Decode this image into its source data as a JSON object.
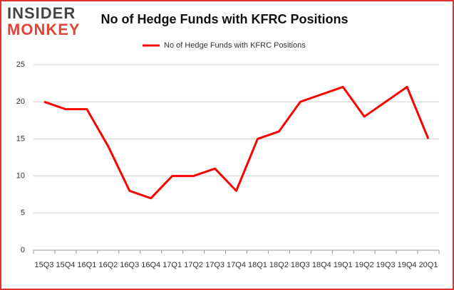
{
  "logo": {
    "line1": "INSIDER",
    "line2": "MONKEY"
  },
  "chart_data": {
    "type": "line",
    "title": "No of Hedge Funds with KFRC Positions",
    "categories": [
      "15Q3",
      "15Q4",
      "16Q1",
      "16Q2",
      "16Q3",
      "16Q4",
      "17Q1",
      "17Q2",
      "17Q3",
      "17Q4",
      "18Q1",
      "18Q2",
      "18Q3",
      "18Q4",
      "19Q1",
      "19Q2",
      "19Q3",
      "19Q4",
      "20Q1"
    ],
    "series": [
      {
        "name": "No of Hedge Funds with KFRC Positions",
        "color": "#ff0000",
        "values": [
          20,
          19,
          19,
          14,
          8,
          7,
          10,
          10,
          11,
          8,
          15,
          16,
          20,
          21,
          22,
          18,
          20,
          22,
          15
        ]
      }
    ],
    "ylim": [
      0,
      25
    ],
    "yticks": [
      0,
      5,
      10,
      15,
      20,
      25
    ],
    "grid": true,
    "legend": "top"
  }
}
